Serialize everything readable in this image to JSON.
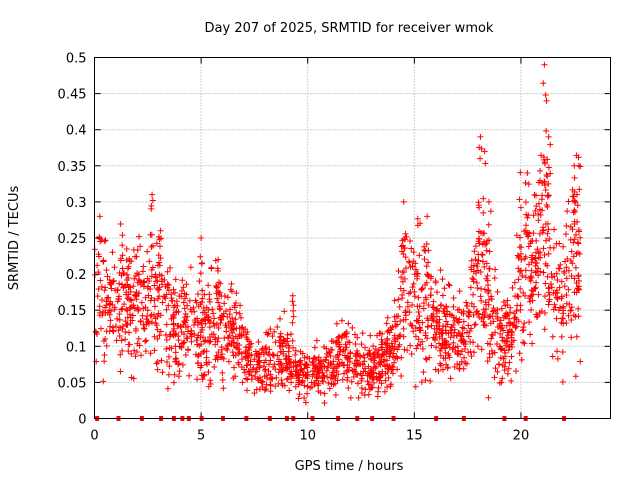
{
  "chart_data": {
    "type": "scatter",
    "title": "Day 207 of 2025, SRMTID for receiver wmok",
    "xlabel": "GPS time / hours",
    "ylabel": "SRMTID / TECUs",
    "xlim": [
      0,
      24.2
    ],
    "ylim": [
      0,
      0.5
    ],
    "xticks": [
      0,
      5,
      10,
      15,
      20
    ],
    "yticks": [
      0,
      0.05,
      0.1,
      0.15,
      0.2,
      0.25,
      0.3,
      0.35,
      0.4,
      0.45,
      0.5
    ],
    "grid": true,
    "marker": "plus",
    "color": "#ff0000",
    "trend": [
      {
        "x": 0.0,
        "y": 0.21
      },
      {
        "x": 0.5,
        "y": 0.17
      },
      {
        "x": 1.0,
        "y": 0.15
      },
      {
        "x": 1.5,
        "y": 0.16
      },
      {
        "x": 2.0,
        "y": 0.15
      },
      {
        "x": 2.5,
        "y": 0.17
      },
      {
        "x": 3.0,
        "y": 0.16
      },
      {
        "x": 3.5,
        "y": 0.14
      },
      {
        "x": 4.0,
        "y": 0.13
      },
      {
        "x": 4.5,
        "y": 0.12
      },
      {
        "x": 5.0,
        "y": 0.11
      },
      {
        "x": 5.5,
        "y": 0.14
      },
      {
        "x": 6.0,
        "y": 0.12
      },
      {
        "x": 6.5,
        "y": 0.11
      },
      {
        "x": 7.0,
        "y": 0.09
      },
      {
        "x": 7.5,
        "y": 0.07
      },
      {
        "x": 8.0,
        "y": 0.075
      },
      {
        "x": 8.5,
        "y": 0.08
      },
      {
        "x": 9.0,
        "y": 0.085
      },
      {
        "x": 9.5,
        "y": 0.06
      },
      {
        "x": 10.0,
        "y": 0.06
      },
      {
        "x": 10.5,
        "y": 0.065
      },
      {
        "x": 11.0,
        "y": 0.07
      },
      {
        "x": 11.5,
        "y": 0.085
      },
      {
        "x": 12.0,
        "y": 0.08
      },
      {
        "x": 12.5,
        "y": 0.075
      },
      {
        "x": 13.0,
        "y": 0.07
      },
      {
        "x": 13.5,
        "y": 0.08
      },
      {
        "x": 14.0,
        "y": 0.1
      },
      {
        "x": 14.5,
        "y": 0.17
      },
      {
        "x": 15.0,
        "y": 0.19
      },
      {
        "x": 15.5,
        "y": 0.16
      },
      {
        "x": 16.0,
        "y": 0.13
      },
      {
        "x": 16.5,
        "y": 0.12
      },
      {
        "x": 17.0,
        "y": 0.11
      },
      {
        "x": 17.5,
        "y": 0.12
      },
      {
        "x": 18.0,
        "y": 0.2
      },
      {
        "x": 18.5,
        "y": 0.14
      },
      {
        "x": 19.0,
        "y": 0.11
      },
      {
        "x": 19.5,
        "y": 0.1
      },
      {
        "x": 20.0,
        "y": 0.2
      },
      {
        "x": 20.5,
        "y": 0.2
      },
      {
        "x": 21.0,
        "y": 0.25
      },
      {
        "x": 21.5,
        "y": 0.17
      },
      {
        "x": 22.0,
        "y": 0.16
      },
      {
        "x": 22.5,
        "y": 0.22
      },
      {
        "x": 22.8,
        "y": 0.24
      }
    ],
    "peaks": [
      {
        "x": 0.25,
        "y": 0.28
      },
      {
        "x": 1.3,
        "y": 0.24
      },
      {
        "x": 2.7,
        "y": 0.31
      },
      {
        "x": 3.1,
        "y": 0.26
      },
      {
        "x": 5.0,
        "y": 0.25
      },
      {
        "x": 5.8,
        "y": 0.22
      },
      {
        "x": 9.3,
        "y": 0.17
      },
      {
        "x": 14.5,
        "y": 0.3
      },
      {
        "x": 15.6,
        "y": 0.28
      },
      {
        "x": 18.1,
        "y": 0.39
      },
      {
        "x": 18.3,
        "y": 0.37
      },
      {
        "x": 18.5,
        "y": 0.3
      },
      {
        "x": 20.3,
        "y": 0.34
      },
      {
        "x": 21.1,
        "y": 0.49
      },
      {
        "x": 21.2,
        "y": 0.44
      },
      {
        "x": 21.3,
        "y": 0.39
      },
      {
        "x": 22.5,
        "y": 0.35
      }
    ],
    "zero_points_x": [
      0.1,
      1.1,
      2.2,
      3.1,
      3.7,
      4.1,
      4.4,
      5.0,
      6.0,
      7.1,
      8.2,
      9.0,
      9.3,
      10.2,
      11.4,
      12.3,
      13.0,
      14.0,
      16.0,
      17.3,
      19.2,
      20.2,
      22.0
    ]
  }
}
